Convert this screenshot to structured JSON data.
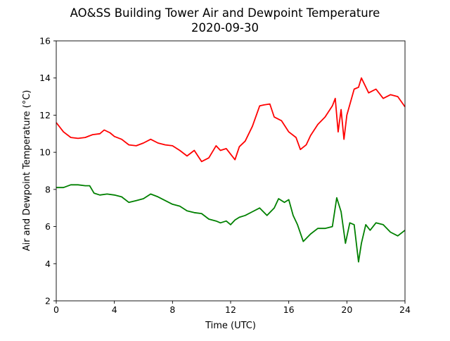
{
  "chart_data": {
    "type": "line",
    "title": "AO&SS Building Tower Air and Dewpoint Temperature",
    "subtitle": "2020-09-30",
    "xlabel": "Time (UTC)",
    "ylabel": "Air and Dewpoint Temperature (°C)",
    "xlim": [
      0,
      24
    ],
    "ylim": [
      2,
      16
    ],
    "xticks": [
      0,
      4,
      8,
      12,
      16,
      20,
      24
    ],
    "yticks": [
      2,
      4,
      6,
      8,
      10,
      12,
      14,
      16
    ],
    "grid": false,
    "legend": "none",
    "series": [
      {
        "key": "air",
        "color": "#ff0000",
        "x": [
          0,
          0.5,
          1,
          1.5,
          2,
          2.5,
          3,
          3.3,
          3.7,
          4,
          4.5,
          5,
          5.5,
          6,
          6.5,
          7,
          7.5,
          8,
          8.5,
          9,
          9.5,
          10,
          10.5,
          11,
          11.3,
          11.7,
          12,
          12.3,
          12.6,
          13,
          13.5,
          14,
          14.3,
          14.7,
          15,
          15.5,
          16,
          16.5,
          16.8,
          17.2,
          17.5,
          18,
          18.5,
          19,
          19.2,
          19.4,
          19.6,
          19.8,
          20,
          20.5,
          20.8,
          21,
          21.5,
          22,
          22.5,
          23,
          23.5,
          24
        ],
        "y": [
          11.6,
          11.1,
          10.8,
          10.75,
          10.8,
          10.95,
          11.0,
          11.2,
          11.05,
          10.85,
          10.7,
          10.4,
          10.35,
          10.5,
          10.7,
          10.5,
          10.4,
          10.35,
          10.1,
          9.8,
          10.1,
          9.5,
          9.7,
          10.35,
          10.1,
          10.2,
          9.9,
          9.6,
          10.3,
          10.6,
          11.4,
          12.5,
          12.55,
          12.6,
          11.9,
          11.7,
          11.1,
          10.8,
          10.15,
          10.4,
          10.9,
          11.5,
          11.9,
          12.5,
          12.9,
          11.1,
          12.3,
          10.7,
          12.0,
          13.4,
          13.5,
          14.0,
          13.2,
          13.4,
          12.9,
          13.1,
          13.0,
          12.45
        ]
      },
      {
        "key": "dewpoint",
        "color": "#008000",
        "x": [
          0,
          0.5,
          1,
          1.5,
          2,
          2.3,
          2.6,
          3,
          3.5,
          4,
          4.5,
          5,
          5.5,
          6,
          6.5,
          7,
          7.5,
          8,
          8.5,
          9,
          9.5,
          10,
          10.5,
          11,
          11.3,
          11.7,
          12,
          12.3,
          12.6,
          13,
          13.5,
          14,
          14.5,
          15,
          15.3,
          15.7,
          16,
          16.3,
          16.6,
          17,
          17.5,
          18,
          18.5,
          19,
          19.3,
          19.6,
          19.9,
          20.2,
          20.5,
          20.8,
          21,
          21.3,
          21.6,
          22,
          22.5,
          23,
          23.5,
          24
        ],
        "y": [
          8.1,
          8.1,
          8.25,
          8.25,
          8.2,
          8.2,
          7.8,
          7.7,
          7.75,
          7.7,
          7.6,
          7.3,
          7.4,
          7.5,
          7.75,
          7.6,
          7.4,
          7.2,
          7.1,
          6.85,
          6.75,
          6.7,
          6.4,
          6.3,
          6.2,
          6.3,
          6.1,
          6.35,
          6.5,
          6.6,
          6.8,
          7.0,
          6.6,
          7.0,
          7.5,
          7.3,
          7.45,
          6.6,
          6.1,
          5.2,
          5.6,
          5.9,
          5.9,
          6.0,
          7.55,
          6.8,
          5.1,
          6.2,
          6.1,
          4.1,
          5.1,
          6.1,
          5.8,
          6.2,
          6.1,
          5.7,
          5.5,
          5.8
        ]
      }
    ]
  }
}
